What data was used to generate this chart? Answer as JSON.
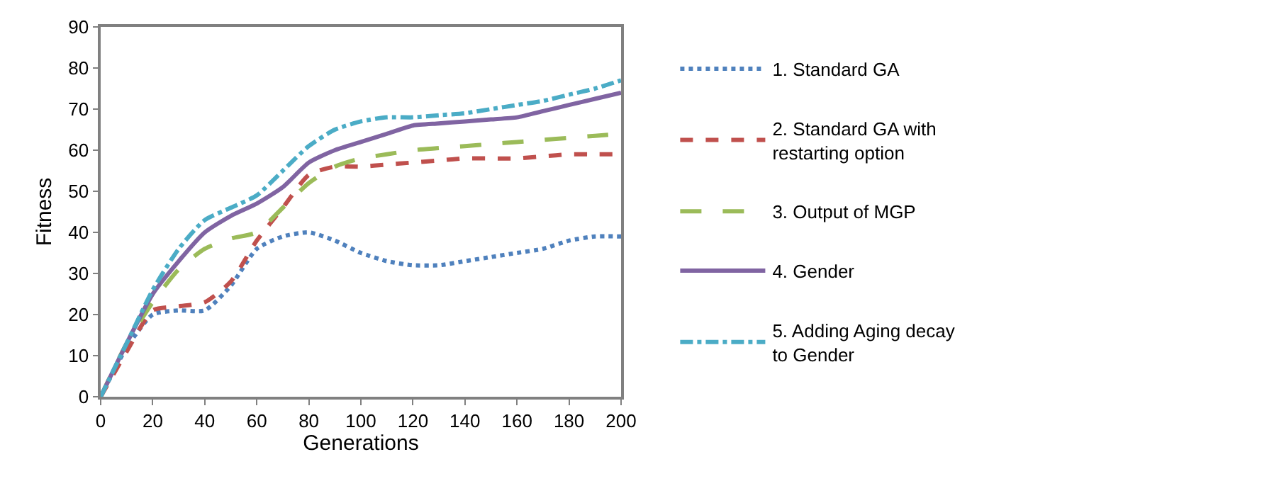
{
  "chart_data": {
    "type": "line",
    "xlabel": "Generations",
    "ylabel": "Fitness",
    "x": [
      0,
      10,
      20,
      30,
      40,
      50,
      60,
      70,
      80,
      90,
      100,
      110,
      120,
      130,
      140,
      150,
      160,
      170,
      180,
      190,
      200
    ],
    "xlim": [
      0,
      200
    ],
    "xticks": [
      0,
      20,
      40,
      60,
      80,
      100,
      120,
      140,
      160,
      180,
      200
    ],
    "ylim": [
      0,
      90
    ],
    "yticks": [
      0,
      10,
      20,
      30,
      40,
      50,
      60,
      70,
      80,
      90
    ],
    "legend": "right",
    "marker": "none",
    "series": [
      {
        "name": "1. Standard GA",
        "color": "#4f81bd",
        "line_style": "dotted",
        "values": [
          0,
          12,
          20,
          21,
          21,
          27,
          36,
          39,
          40,
          38,
          35,
          33,
          32,
          32,
          33,
          34,
          35,
          36,
          38,
          39,
          39
        ]
      },
      {
        "name": "2. Standard GA with\nrestarting option",
        "color": "#c0504d",
        "line_style": "dashed",
        "values": [
          0,
          11,
          21,
          22,
          23,
          28,
          38,
          46,
          54,
          56,
          56,
          56.5,
          57,
          57.5,
          58,
          58,
          58,
          58.5,
          59,
          59,
          59
        ]
      },
      {
        "name": "3. Output of MGP",
        "color": "#9bbb59",
        "line_style": "longdash",
        "values": [
          0,
          13,
          23,
          31,
          36,
          38.5,
          40,
          46,
          52,
          56,
          58,
          59,
          60,
          60.5,
          61,
          61.5,
          62,
          62.5,
          63,
          63.5,
          64
        ]
      },
      {
        "name": "4. Gender",
        "color": "#8064a2",
        "line_style": "solid",
        "values": [
          0,
          13,
          25,
          33,
          40,
          44,
          47,
          51,
          57,
          60,
          62,
          64,
          66,
          66.5,
          67,
          67.5,
          68,
          69.5,
          71,
          72.5,
          74
        ]
      },
      {
        "name": "5. Adding Aging decay\nto Gender",
        "color": "#4bacc6",
        "line_style": "dashdot",
        "values": [
          0,
          13,
          26,
          36,
          43,
          46,
          49,
          55,
          61,
          65,
          67,
          68,
          68,
          68.5,
          69,
          70,
          71,
          72,
          73.5,
          75,
          77
        ]
      }
    ]
  }
}
